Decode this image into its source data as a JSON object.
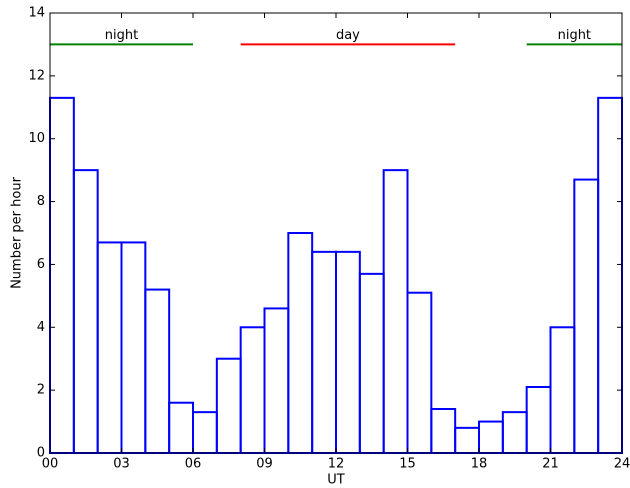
{
  "chart_data": {
    "type": "histogram",
    "x_label": "UT",
    "y_label": "Number per hour",
    "bins": [
      0,
      1,
      2,
      3,
      4,
      5,
      6,
      7,
      8,
      9,
      10,
      11,
      12,
      13,
      14,
      15,
      16,
      17,
      18,
      19,
      20,
      21,
      22,
      23,
      24
    ],
    "values": [
      11.3,
      9.0,
      6.7,
      6.7,
      5.2,
      1.6,
      1.3,
      3.0,
      4.0,
      4.6,
      7.0,
      6.4,
      6.4,
      5.7,
      9.0,
      5.1,
      1.4,
      0.8,
      1.0,
      1.3,
      2.1,
      4.0,
      8.7,
      11.3
    ],
    "color": "#0000ff",
    "xlim": [
      0,
      24
    ],
    "xticks": [
      {
        "value": 0,
        "label": "00"
      },
      {
        "value": 3,
        "label": "03"
      },
      {
        "value": 6,
        "label": "06"
      },
      {
        "value": 9,
        "label": "09"
      },
      {
        "value": 12,
        "label": "12"
      },
      {
        "value": 15,
        "label": "15"
      },
      {
        "value": 18,
        "label": "18"
      },
      {
        "value": 21,
        "label": "21"
      },
      {
        "value": 24,
        "label": "24"
      }
    ],
    "ylim": [
      0,
      14
    ],
    "yticks": [
      0,
      2,
      4,
      6,
      8,
      10,
      12,
      14
    ],
    "annotations": [
      {
        "label": "night",
        "x": [
          0,
          6
        ],
        "y": 13,
        "color": "#008000"
      },
      {
        "label": "day",
        "x": [
          8,
          17
        ],
        "y": 13,
        "color": "#ff0000"
      },
      {
        "label": "night",
        "x": [
          20,
          24
        ],
        "y": 13,
        "color": "#008000"
      }
    ]
  }
}
